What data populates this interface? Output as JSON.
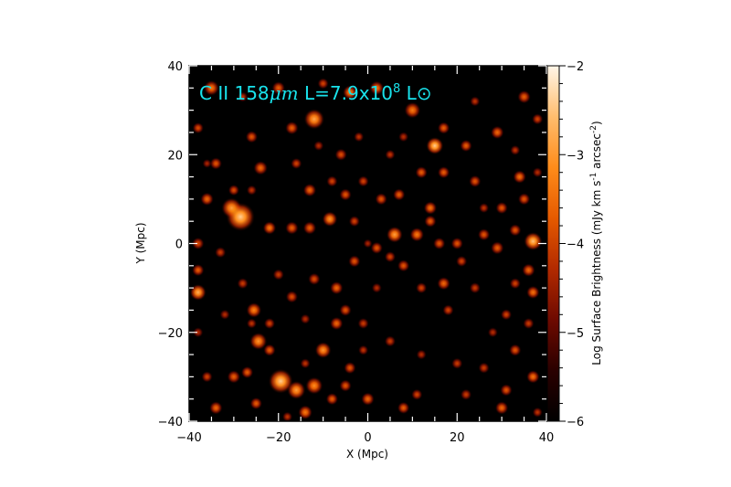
{
  "chart_data": {
    "type": "heatmap",
    "annotation": {
      "species": "C II 158",
      "unit": "μm",
      "luminosity_label": " L=7.9x10",
      "exponent": "8",
      "solar_symbol": " L⊙"
    },
    "xlabel": "X (Mpc)",
    "ylabel": "Y (Mpc)",
    "xlim": [
      -40,
      40
    ],
    "ylim": [
      -40,
      40
    ],
    "x_ticks": [
      -40,
      -20,
      0,
      20,
      40
    ],
    "y_ticks": [
      -40,
      -20,
      0,
      20,
      40
    ],
    "colorbar": {
      "label": "Log Surface Brightness (mJy km s",
      "label_sup1": "-1",
      "label_mid": " arcsec",
      "label_sup2": "-2",
      "label_end": ")",
      "range": [
        -6,
        -2
      ],
      "ticks": [
        -6,
        -5,
        -4,
        -3,
        -2
      ],
      "colormap": [
        "#000000",
        "#2a0000",
        "#6e0a00",
        "#b22a00",
        "#e55a00",
        "#ff8c1a",
        "#ffbd6e",
        "#fff6e8"
      ]
    },
    "sources": [
      [
        -28.5,
        6.0,
        2.8,
        -2.4
      ],
      [
        -30.5,
        8.0,
        2.0,
        -2.9
      ],
      [
        -12.0,
        28.0,
        2.0,
        -2.8
      ],
      [
        15.0,
        22.0,
        1.7,
        -2.4
      ],
      [
        6.0,
        2.0,
        1.6,
        -2.9
      ],
      [
        37.0,
        0.5,
        1.8,
        -2.5
      ],
      [
        -38.0,
        -11.0,
        1.6,
        -2.7
      ],
      [
        -19.5,
        -31.0,
        2.4,
        -2.4
      ],
      [
        -16.0,
        -33.0,
        1.8,
        -2.9
      ],
      [
        -12.0,
        -32.0,
        1.7,
        -3.1
      ],
      [
        -10.0,
        -24.0,
        1.6,
        -3.0
      ],
      [
        -24.5,
        -22.0,
        1.7,
        -3.0
      ],
      [
        -25.5,
        -15.0,
        1.5,
        -3.2
      ],
      [
        -8.5,
        5.5,
        1.5,
        -3.0
      ],
      [
        10.0,
        30.0,
        1.6,
        -3.3
      ],
      [
        -35.0,
        35.0,
        1.5,
        -3.3
      ],
      [
        -22.0,
        3.5,
        1.3,
        -3.3
      ],
      [
        -17.0,
        3.5,
        1.3,
        -3.6
      ],
      [
        -13.0,
        3.5,
        1.3,
        -3.6
      ],
      [
        -24.0,
        17.0,
        1.4,
        -3.5
      ],
      [
        -4.0,
        34.0,
        1.4,
        -3.2
      ],
      [
        2.0,
        35.0,
        1.4,
        -3.4
      ],
      [
        -20.0,
        35.0,
        1.3,
        -3.6
      ],
      [
        -26.0,
        24.0,
        1.2,
        -3.7
      ],
      [
        -17.0,
        26.0,
        1.3,
        -3.6
      ],
      [
        -38.0,
        26.0,
        1.1,
        -3.8
      ],
      [
        -34.0,
        18.0,
        1.2,
        -3.7
      ],
      [
        -36.0,
        10.0,
        1.3,
        -3.5
      ],
      [
        -38.0,
        -6.0,
        1.2,
        -3.6
      ],
      [
        -38.0,
        0.0,
        1.2,
        -3.8
      ],
      [
        -33.0,
        -2.0,
        1.1,
        -4.0
      ],
      [
        -6.0,
        20.0,
        1.2,
        -3.8
      ],
      [
        -13.0,
        12.0,
        1.3,
        -3.5
      ],
      [
        -5.0,
        11.0,
        1.2,
        -3.7
      ],
      [
        -1.0,
        14.0,
        1.1,
        -3.9
      ],
      [
        3.0,
        10.0,
        1.2,
        -3.7
      ],
      [
        7.0,
        11.0,
        1.2,
        -3.6
      ],
      [
        14.0,
        8.0,
        1.3,
        -3.4
      ],
      [
        14.0,
        5.0,
        1.2,
        -3.6
      ],
      [
        12.0,
        16.0,
        1.2,
        -3.6
      ],
      [
        17.0,
        16.0,
        1.2,
        -3.6
      ],
      [
        17.0,
        26.0,
        1.2,
        -3.6
      ],
      [
        22.0,
        22.0,
        1.2,
        -3.6
      ],
      [
        24.0,
        14.0,
        1.2,
        -3.7
      ],
      [
        29.0,
        25.0,
        1.3,
        -3.5
      ],
      [
        35.0,
        33.0,
        1.3,
        -3.6
      ],
      [
        34.0,
        15.0,
        1.3,
        -3.4
      ],
      [
        30.0,
        8.0,
        1.2,
        -3.7
      ],
      [
        35.0,
        10.0,
        1.2,
        -3.7
      ],
      [
        38.0,
        28.0,
        1.1,
        -3.9
      ],
      [
        26.0,
        2.0,
        1.2,
        -3.7
      ],
      [
        20.0,
        0.0,
        1.2,
        -3.7
      ],
      [
        29.0,
        -1.0,
        1.3,
        -3.6
      ],
      [
        33.0,
        3.0,
        1.2,
        -3.7
      ],
      [
        36.0,
        -6.0,
        1.3,
        -3.5
      ],
      [
        37.0,
        -11.0,
        1.3,
        -3.4
      ],
      [
        33.0,
        -9.0,
        1.1,
        -3.9
      ],
      [
        31.0,
        -16.0,
        1.1,
        -3.9
      ],
      [
        36.0,
        -18.0,
        1.1,
        -4.0
      ],
      [
        33.0,
        -24.0,
        1.2,
        -3.7
      ],
      [
        37.0,
        -30.0,
        1.3,
        -3.4
      ],
      [
        31.0,
        -33.0,
        1.2,
        -3.7
      ],
      [
        30.0,
        -37.0,
        1.3,
        -3.5
      ],
      [
        26.0,
        -28.0,
        1.1,
        -4.0
      ],
      [
        20.0,
        -27.0,
        1.1,
        -4.0
      ],
      [
        22.0,
        -34.0,
        1.1,
        -4.0
      ],
      [
        17.0,
        -9.0,
        1.3,
        -3.5
      ],
      [
        12.0,
        -10.0,
        1.1,
        -3.9
      ],
      [
        8.0,
        -5.0,
        1.2,
        -3.7
      ],
      [
        2.0,
        -1.0,
        1.2,
        -3.7
      ],
      [
        -3.0,
        -4.0,
        1.2,
        -3.7
      ],
      [
        -7.0,
        -10.0,
        1.3,
        -3.5
      ],
      [
        -5.0,
        -15.0,
        1.2,
        -3.7
      ],
      [
        -7.0,
        -18.0,
        1.3,
        -3.5
      ],
      [
        -1.0,
        -18.0,
        1.1,
        -4.0
      ],
      [
        -12.0,
        -8.0,
        1.2,
        -3.8
      ],
      [
        -17.0,
        -12.0,
        1.2,
        -3.8
      ],
      [
        -20.0,
        -7.0,
        1.1,
        -4.0
      ],
      [
        -28.0,
        -9.0,
        1.1,
        -4.0
      ],
      [
        -30.0,
        -30.0,
        1.3,
        -3.6
      ],
      [
        -36.0,
        -30.0,
        1.1,
        -3.9
      ],
      [
        -34.0,
        -37.0,
        1.3,
        -3.5
      ],
      [
        -27.0,
        -29.0,
        1.2,
        -3.6
      ],
      [
        -25.0,
        -36.0,
        1.2,
        -3.6
      ],
      [
        -14.0,
        -38.0,
        1.4,
        -3.3
      ],
      [
        -8.0,
        -35.0,
        1.2,
        -3.6
      ],
      [
        -5.0,
        -32.0,
        1.2,
        -3.7
      ],
      [
        -4.0,
        -28.0,
        1.2,
        -3.7
      ],
      [
        0.0,
        -35.0,
        1.3,
        -3.5
      ],
      [
        8.0,
        -37.0,
        1.2,
        -3.6
      ],
      [
        11.0,
        -34.0,
        1.1,
        -3.9
      ],
      [
        5.0,
        -22.0,
        1.1,
        -4.0
      ],
      [
        -1.0,
        -24.0,
        1.0,
        -4.1
      ],
      [
        18.0,
        -15.0,
        1.1,
        -3.9
      ],
      [
        24.0,
        -10.0,
        1.1,
        -4.0
      ],
      [
        21.0,
        -4.0,
        1.1,
        -3.9
      ],
      [
        11.0,
        2.0,
        1.4,
        -3.3
      ],
      [
        16.0,
        0.0,
        1.2,
        -3.7
      ],
      [
        5.0,
        -3.0,
        1.1,
        -3.9
      ],
      [
        -3.0,
        5.0,
        1.1,
        -3.9
      ],
      [
        -8.0,
        14.0,
        1.1,
        -3.9
      ],
      [
        -16.0,
        18.0,
        1.1,
        -3.9
      ],
      [
        -30.0,
        12.0,
        1.1,
        -3.8
      ],
      [
        -26.0,
        12.0,
        1.0,
        -4.1
      ],
      [
        -2.0,
        24.0,
        1.0,
        -4.1
      ],
      [
        5.0,
        20.0,
        1.0,
        -4.1
      ],
      [
        -28.0,
        33.0,
        1.0,
        -4.1
      ],
      [
        -10.0,
        36.0,
        1.1,
        -3.9
      ],
      [
        24.0,
        32.0,
        1.0,
        -4.1
      ],
      [
        33.0,
        21.0,
        1.0,
        -4.1
      ],
      [
        26.0,
        8.0,
        1.0,
        -4.1
      ],
      [
        8.0,
        24.0,
        1.0,
        -4.2
      ],
      [
        -36.0,
        18.0,
        0.9,
        -4.3
      ],
      [
        -32.0,
        -16.0,
        1.0,
        -4.2
      ],
      [
        -22.0,
        -24.0,
        1.2,
        -3.6
      ],
      [
        -14.0,
        -27.0,
        1.0,
        -4.1
      ],
      [
        -18.0,
        -39.0,
        1.0,
        -4.1
      ],
      [
        12.0,
        -25.0,
        1.0,
        -4.2
      ],
      [
        28.0,
        -20.0,
        1.0,
        -4.2
      ],
      [
        38.0,
        -38.0,
        1.0,
        -4.1
      ],
      [
        -38.0,
        -20.0,
        1.0,
        -4.2
      ],
      [
        38.0,
        16.0,
        1.0,
        -4.2
      ],
      [
        -11.0,
        22.0,
        1.0,
        -4.2
      ],
      [
        2.0,
        -10.0,
        1.0,
        -4.2
      ],
      [
        0.0,
        0.0,
        0.9,
        -4.3
      ],
      [
        -14.0,
        -17.0,
        1.0,
        -4.2
      ],
      [
        -22.0,
        -18.0,
        1.1,
        -3.9
      ],
      [
        -26.0,
        -18.0,
        1.0,
        -4.1
      ]
    ]
  }
}
